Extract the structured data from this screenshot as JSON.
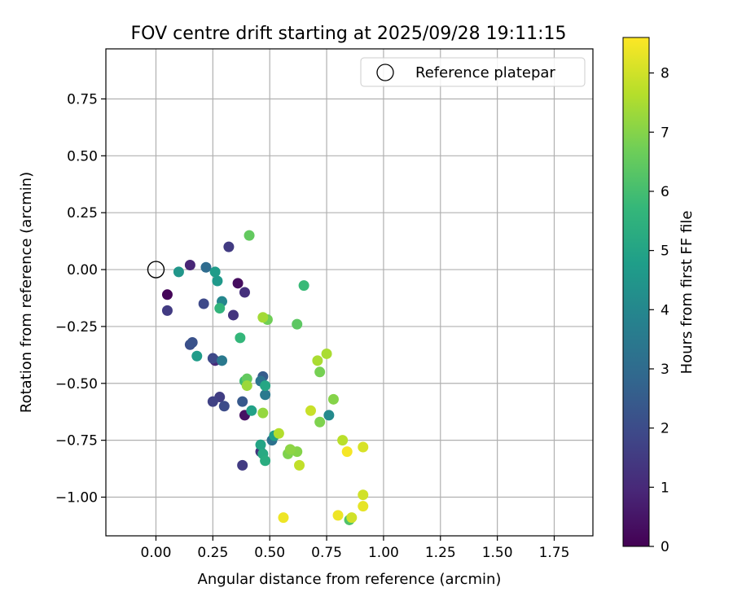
{
  "chart_data": {
    "type": "scatter",
    "title": "FOV centre drift starting at 2025/09/28 19:11:15",
    "xlabel": "Angular distance from reference (arcmin)",
    "ylabel": "Rotation from reference (arcmin)",
    "xlim": [
      -0.22,
      1.92
    ],
    "ylim": [
      -1.17,
      0.97
    ],
    "x_ticks": [
      0.0,
      0.25,
      0.5,
      0.75,
      1.0,
      1.25,
      1.5,
      1.75
    ],
    "x_tick_labels": [
      "0.00",
      "0.25",
      "0.50",
      "0.75",
      "1.00",
      "1.25",
      "1.50",
      "1.75"
    ],
    "y_ticks": [
      0.75,
      0.5,
      0.25,
      0.0,
      -0.25,
      -0.5,
      -0.75,
      -1.0
    ],
    "y_tick_labels": [
      "0.75",
      "0.50",
      "0.25",
      "0.00",
      "−0.25",
      "−0.50",
      "−0.75",
      "−1.00"
    ],
    "grid": true,
    "legend": {
      "location": "top-right",
      "entries": [
        "Reference platepar"
      ]
    },
    "reference_point": {
      "x": 0.0,
      "y": 0.0,
      "label": "Reference platepar"
    },
    "colorbar": {
      "label": "Hours from first FF file",
      "min": 0,
      "max": 8.6,
      "ticks": [
        0,
        1,
        2,
        3,
        4,
        5,
        6,
        7,
        8
      ],
      "tick_labels": [
        "0",
        "1",
        "2",
        "3",
        "4",
        "5",
        "6",
        "7",
        "8"
      ],
      "colormap": "viridis"
    },
    "colormap_stops": [
      "#440154",
      "#482878",
      "#3e4989",
      "#31688e",
      "#26828e",
      "#1f9e89",
      "#35b779",
      "#6ece58",
      "#b5de2b",
      "#fde725"
    ],
    "points": [
      {
        "x": 0.05,
        "y": -0.11,
        "h": 0.1
      },
      {
        "x": 0.36,
        "y": -0.06,
        "h": 0.3
      },
      {
        "x": 0.39,
        "y": -0.64,
        "h": 0.4
      },
      {
        "x": 0.15,
        "y": 0.02,
        "h": 0.9
      },
      {
        "x": 0.26,
        "y": -0.4,
        "h": 1.0
      },
      {
        "x": 0.39,
        "y": -0.1,
        "h": 1.2
      },
      {
        "x": 0.46,
        "y": -0.8,
        "h": 1.3
      },
      {
        "x": 0.34,
        "y": -0.2,
        "h": 1.3
      },
      {
        "x": 0.05,
        "y": -0.18,
        "h": 1.5
      },
      {
        "x": 0.32,
        "y": 0.1,
        "h": 1.5
      },
      {
        "x": 0.38,
        "y": -0.86,
        "h": 1.5
      },
      {
        "x": 0.28,
        "y": -0.56,
        "h": 1.6
      },
      {
        "x": 0.25,
        "y": -0.58,
        "h": 1.7
      },
      {
        "x": 0.21,
        "y": -0.15,
        "h": 1.9
      },
      {
        "x": 0.25,
        "y": -0.39,
        "h": 1.9
      },
      {
        "x": 0.3,
        "y": -0.6,
        "h": 2.0
      },
      {
        "x": 0.15,
        "y": -0.33,
        "h": 2.1
      },
      {
        "x": 0.16,
        "y": -0.32,
        "h": 2.2
      },
      {
        "x": 0.38,
        "y": -0.58,
        "h": 2.4
      },
      {
        "x": 0.47,
        "y": -0.47,
        "h": 2.5
      },
      {
        "x": 0.22,
        "y": 0.01,
        "h": 3.0
      },
      {
        "x": 0.51,
        "y": -0.75,
        "h": 3.2
      },
      {
        "x": 0.46,
        "y": -0.49,
        "h": 3.3
      },
      {
        "x": 0.29,
        "y": -0.4,
        "h": 3.5
      },
      {
        "x": 0.48,
        "y": -0.55,
        "h": 3.5
      },
      {
        "x": 0.29,
        "y": -0.14,
        "h": 4.0
      },
      {
        "x": 0.76,
        "y": -0.64,
        "h": 4.1
      },
      {
        "x": 0.1,
        "y": -0.01,
        "h": 4.5
      },
      {
        "x": 0.27,
        "y": -0.05,
        "h": 4.6
      },
      {
        "x": 0.18,
        "y": -0.38,
        "h": 4.7
      },
      {
        "x": 0.26,
        "y": -0.01,
        "h": 4.7
      },
      {
        "x": 0.52,
        "y": -0.73,
        "h": 4.8
      },
      {
        "x": 0.42,
        "y": -0.62,
        "h": 4.9
      },
      {
        "x": 0.46,
        "y": -0.77,
        "h": 5.0
      },
      {
        "x": 0.48,
        "y": -0.51,
        "h": 5.1
      },
      {
        "x": 0.47,
        "y": -0.81,
        "h": 5.2
      },
      {
        "x": 0.48,
        "y": -0.84,
        "h": 5.3
      },
      {
        "x": 0.28,
        "y": -0.17,
        "h": 5.6
      },
      {
        "x": 0.37,
        "y": -0.3,
        "h": 5.7
      },
      {
        "x": 0.65,
        "y": -0.07,
        "h": 5.8
      },
      {
        "x": 0.39,
        "y": -0.49,
        "h": 5.9
      },
      {
        "x": 0.85,
        "y": -1.1,
        "h": 6.2
      },
      {
        "x": 0.62,
        "y": -0.24,
        "h": 6.4
      },
      {
        "x": 0.41,
        "y": 0.15,
        "h": 6.5
      },
      {
        "x": 0.4,
        "y": -0.48,
        "h": 6.5
      },
      {
        "x": 0.49,
        "y": -0.22,
        "h": 6.7
      },
      {
        "x": 0.72,
        "y": -0.45,
        "h": 6.8
      },
      {
        "x": 0.72,
        "y": -0.67,
        "h": 6.9
      },
      {
        "x": 0.58,
        "y": -0.81,
        "h": 6.9
      },
      {
        "x": 0.78,
        "y": -0.57,
        "h": 7.0
      },
      {
        "x": 0.62,
        "y": -0.8,
        "h": 7.0
      },
      {
        "x": 0.59,
        "y": -0.79,
        "h": 7.1
      },
      {
        "x": 0.47,
        "y": -0.63,
        "h": 7.2
      },
      {
        "x": 0.4,
        "y": -0.51,
        "h": 7.3
      },
      {
        "x": 0.47,
        "y": -0.21,
        "h": 7.4
      },
      {
        "x": 0.71,
        "y": -0.4,
        "h": 7.5
      },
      {
        "x": 0.75,
        "y": -0.37,
        "h": 7.5
      },
      {
        "x": 0.54,
        "y": -0.72,
        "h": 7.6
      },
      {
        "x": 0.82,
        "y": -0.75,
        "h": 7.7
      },
      {
        "x": 0.63,
        "y": -0.86,
        "h": 7.8
      },
      {
        "x": 0.68,
        "y": -0.62,
        "h": 7.9
      },
      {
        "x": 0.91,
        "y": -0.99,
        "h": 8.0
      },
      {
        "x": 0.86,
        "y": -1.09,
        "h": 8.0
      },
      {
        "x": 0.91,
        "y": -0.78,
        "h": 8.1
      },
      {
        "x": 0.91,
        "y": -1.04,
        "h": 8.3
      },
      {
        "x": 0.56,
        "y": -1.09,
        "h": 8.4
      },
      {
        "x": 0.8,
        "y": -1.08,
        "h": 8.4
      },
      {
        "x": 0.84,
        "y": -0.8,
        "h": 8.5
      }
    ]
  }
}
